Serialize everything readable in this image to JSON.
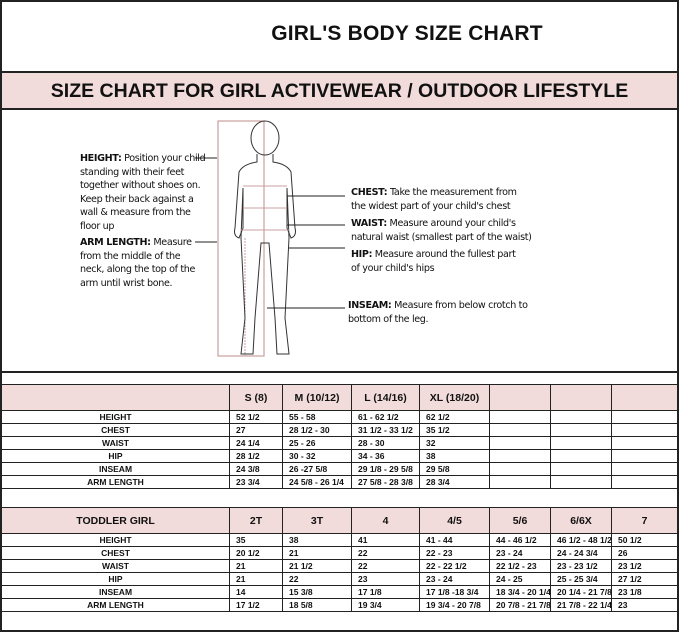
{
  "title": "GIRL'S BODY SIZE CHART",
  "banner": "SIZE CHART FOR GIRL ACTIVEWEAR / OUTDOOR LIFESTYLE",
  "notes": {
    "height": {
      "label": "HEIGHT:",
      "text": " Position your child standing with their feet together without shoes on. Keep their back against a wall & measure from the floor up"
    },
    "arm": {
      "label": "ARM LENGTH:",
      "text": "  Measure from the middle of the neck, along the top of the arm until wrist bone."
    },
    "chest": {
      "label": "CHEST:",
      "text": " Take the measurement from the widest part of your child's chest"
    },
    "waist": {
      "label": "WAIST:",
      "text": " Measure around your child's natural waist (smallest part of the waist)"
    },
    "hip": {
      "label": "HIP:",
      "text": " Measure around the fullest part of your child's hips"
    },
    "inseam": {
      "label": "INSEAM:",
      "text": " Measure from below crotch to bottom of the leg."
    }
  },
  "girl_table": {
    "header": [
      "",
      "S (8)",
      "M (10/12)",
      "L (14/16)",
      "XL (18/20)",
      "",
      "",
      ""
    ],
    "rows": [
      [
        "HEIGHT",
        "52 1/2",
        "55 - 58",
        "61 -  62 1/2",
        "62 1/2",
        "",
        "",
        ""
      ],
      [
        "CHEST",
        "27",
        "28 1/2 - 30",
        "31 1/2 - 33 1/2",
        "35 1/2",
        "",
        "",
        ""
      ],
      [
        "WAIST",
        "24 1/4",
        "25  - 26",
        "28 - 30",
        "32",
        "",
        "",
        ""
      ],
      [
        "HIP",
        "28 1/2",
        "30 - 32",
        "34 - 36",
        "38",
        "",
        "",
        ""
      ],
      [
        "INSEAM",
        "24 3/8",
        "26 -27 5/8",
        "29 1/8 - 29 5/8",
        "29 5/8",
        "",
        "",
        ""
      ],
      [
        "ARM LENGTH",
        "23 3/4",
        "24 5/8 - 26 1/4",
        "27 5/8  - 28 3/8",
        "28 3/4",
        "",
        "",
        ""
      ]
    ]
  },
  "toddler_table": {
    "header": [
      "TODDLER GIRL",
      "2T",
      "3T",
      "4",
      "4/5",
      "5/6",
      "6/6X",
      "7"
    ],
    "rows": [
      [
        "HEIGHT",
        "35",
        "38",
        "41",
        "41 - 44",
        "44  -  46 1/2",
        "46 1/2 - 48 1/2",
        "50 1/2"
      ],
      [
        "CHEST",
        "20 1/2",
        "21",
        "22",
        "22 - 23",
        "23 - 24",
        "24 -  24 3/4",
        "26"
      ],
      [
        "WAIST",
        "21",
        "21 1/2",
        "22",
        "22 - 22 1/2",
        "22 1/2 - 23",
        "23 - 23 1/2",
        "23 1/2"
      ],
      [
        "HIP",
        "21",
        "22",
        "23",
        "23 - 24",
        "24 - 25",
        "25 - 25 3/4",
        "27 1/2"
      ],
      [
        "INSEAM",
        "14",
        "15 3/8",
        "17 1/8",
        "17 1/8 -18 3/4",
        "18 3/4 - 20 1/4",
        "20 1/4 - 21 7/8",
        "23 1/8"
      ],
      [
        "ARM LENGTH",
        "17 1/2",
        "18 5/8",
        "19 3/4",
        "19 3/4 - 20  7/8",
        "20 7/8 - 21 7/8",
        "21 7/8 - 22 1/4",
        "23"
      ]
    ]
  },
  "colors": {
    "header_fill": "#f2dcdb",
    "measure_line": "#c9a0a0"
  }
}
